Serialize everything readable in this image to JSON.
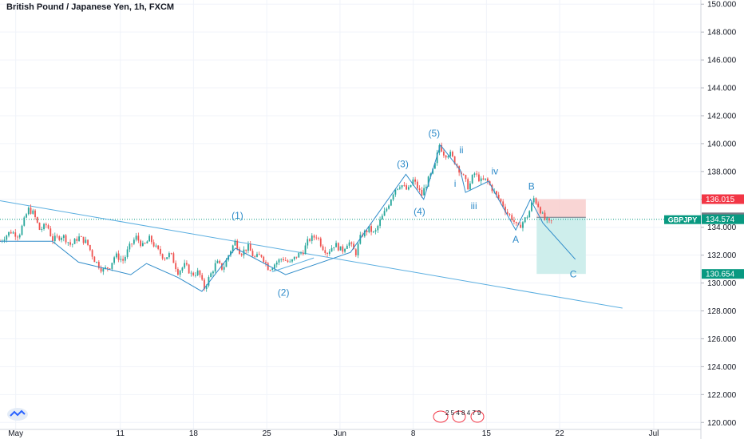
{
  "header": {
    "title": "British Pound / Japanese Yen, 1h, FXCM"
  },
  "colors": {
    "wave": "#2e8bc9",
    "trendline": "#5aaee0",
    "candle_up": "#26a69a",
    "candle_down": "#ef5350",
    "stop_zone": "#f7cac9",
    "target_zone": "#c9ecea",
    "price_tag_red": "#f23645",
    "price_tag_green": "#089981",
    "price_tag_gray": "#787b86",
    "grid": "#f0f3fa",
    "axis_text": "#131722"
  },
  "icons": {
    "logo": "tradingview-logo-icon"
  },
  "chart_data": {
    "type": "candlestick",
    "symbol": "GBPJPY",
    "interval": "1h",
    "y_axis": {
      "ticks": [
        "150.000",
        "148.000",
        "146.000",
        "144.000",
        "142.000",
        "140.000",
        "138.000",
        "136.000",
        "134.000",
        "132.000",
        "130.000",
        "128.000",
        "126.000",
        "124.000",
        "122.000",
        "120.000"
      ],
      "range": [
        119.5,
        150.3
      ]
    },
    "x_axis": {
      "ticks": [
        "May",
        "11",
        "18",
        "25",
        "Jun",
        "8",
        "15",
        "22",
        "Jul"
      ],
      "tick_day_index": [
        0,
        10,
        17,
        24,
        31,
        38,
        45,
        52,
        61
      ],
      "range_days": [
        -1.5,
        65.5
      ]
    },
    "price_labels": [
      {
        "label": "",
        "value": "136.015",
        "price": 136.015,
        "color": "#f23645"
      },
      {
        "label": "",
        "value": "134.711",
        "price": 134.711,
        "color": "#787b86"
      },
      {
        "label": "GBPJPY",
        "value": "134.574",
        "price": 134.574,
        "color": "#089981"
      },
      {
        "label": "",
        "value": "130.654",
        "price": 130.654,
        "color": "#089981"
      }
    ],
    "close_series": [
      [
        -1.5,
        133.0
      ],
      [
        -0.5,
        133.7
      ],
      [
        0.3,
        133.4
      ],
      [
        1.2,
        135.3
      ],
      [
        1.7,
        135.0
      ],
      [
        2.3,
        133.8
      ],
      [
        3.0,
        134.2
      ],
      [
        3.5,
        133.1
      ],
      [
        4.5,
        133.4
      ],
      [
        5.3,
        132.7
      ],
      [
        6.0,
        133.3
      ],
      [
        6.8,
        132.9
      ],
      [
        7.5,
        131.7
      ],
      [
        8.3,
        130.9
      ],
      [
        9.0,
        131.2
      ],
      [
        9.5,
        132.0
      ],
      [
        10.3,
        131.6
      ],
      [
        10.8,
        132.5
      ],
      [
        11.5,
        133.3
      ],
      [
        12.2,
        132.6
      ],
      [
        12.8,
        133.2
      ],
      [
        13.5,
        132.4
      ],
      [
        14.2,
        131.8
      ],
      [
        14.8,
        132.1
      ],
      [
        15.5,
        130.8
      ],
      [
        16.2,
        131.3
      ],
      [
        16.8,
        130.6
      ],
      [
        17.5,
        130.8
      ],
      [
        18.0,
        129.6
      ],
      [
        18.5,
        130.4
      ],
      [
        19.2,
        131.5
      ],
      [
        19.8,
        131.0
      ],
      [
        20.5,
        132.3
      ],
      [
        21.0,
        133.0
      ],
      [
        21.5,
        132.1
      ],
      [
        22.2,
        132.6
      ],
      [
        22.8,
        131.8
      ],
      [
        23.5,
        132.0
      ],
      [
        24.2,
        131.0
      ],
      [
        24.8,
        131.4
      ],
      [
        25.5,
        131.8
      ],
      [
        26.2,
        131.4
      ],
      [
        26.8,
        131.9
      ],
      [
        27.5,
        132.3
      ],
      [
        28.0,
        133.1
      ],
      [
        28.8,
        133.4
      ],
      [
        29.3,
        132.6
      ],
      [
        29.8,
        132.2
      ],
      [
        30.5,
        132.8
      ],
      [
        31.2,
        132.3
      ],
      [
        31.8,
        133.0
      ],
      [
        32.5,
        132.1
      ],
      [
        33.0,
        133.4
      ],
      [
        33.8,
        133.9
      ],
      [
        34.3,
        133.5
      ],
      [
        34.8,
        134.4
      ],
      [
        35.5,
        135.4
      ],
      [
        36.2,
        136.7
      ],
      [
        36.8,
        137.1
      ],
      [
        37.5,
        136.6
      ],
      [
        38.0,
        137.4
      ],
      [
        38.8,
        136.3
      ],
      [
        39.3,
        137.2
      ],
      [
        40.0,
        138.2
      ],
      [
        40.5,
        139.9
      ],
      [
        41.0,
        139.2
      ],
      [
        41.5,
        139.3
      ],
      [
        42.2,
        138.4
      ],
      [
        42.8,
        137.6
      ],
      [
        43.3,
        136.8
      ],
      [
        43.8,
        137.9
      ],
      [
        44.5,
        137.3
      ],
      [
        45.0,
        137.4
      ],
      [
        45.5,
        136.8
      ],
      [
        46.0,
        136.2
      ],
      [
        46.5,
        135.7
      ],
      [
        47.0,
        135.0
      ],
      [
        47.5,
        134.6
      ],
      [
        48.0,
        133.9
      ],
      [
        48.5,
        134.4
      ],
      [
        49.0,
        134.9
      ],
      [
        49.5,
        136.1
      ],
      [
        50.0,
        135.5
      ],
      [
        50.5,
        134.6
      ],
      [
        51.0,
        134.3
      ],
      [
        51.4,
        134.5
      ]
    ],
    "wave_labels": [
      "(1)",
      "(2)",
      "(3)",
      "(4)",
      "(5)",
      "i",
      "ii",
      "iii",
      "iv",
      "A",
      "B",
      "C"
    ],
    "wave_points": {
      "impulse": [
        [
          -1.5,
          133.0
        ],
        [
          3.5,
          133.0
        ],
        [
          6.0,
          131.5
        ],
        [
          11.0,
          130.6
        ],
        [
          12.5,
          131.4
        ],
        [
          15.5,
          130.4
        ],
        [
          17.8,
          129.4
        ],
        [
          21.0,
          132.5
        ],
        [
          25.8,
          130.6
        ],
        [
          32.0,
          132.2
        ],
        [
          37.3,
          137.8
        ],
        [
          39.0,
          136.0
        ],
        [
          40.6,
          139.9
        ]
      ],
      "correction": [
        [
          40.6,
          139.9
        ],
        [
          42.5,
          138.1
        ],
        [
          43.0,
          136.5
        ],
        [
          45.2,
          137.3
        ],
        [
          47.8,
          133.8
        ],
        [
          49.2,
          136.0
        ],
        [
          50.4,
          134.3
        ],
        [
          53.5,
          131.7
        ]
      ]
    },
    "trendlines": [
      {
        "from": [
          -1.5,
          135.9
        ],
        "to": [
          58.0,
          128.2
        ]
      }
    ],
    "zones": {
      "stop": {
        "x_from": 49.8,
        "x_to": 54.5,
        "y_from": 134.711,
        "y_to": 136.015
      },
      "target": {
        "x_from": 49.8,
        "x_to": 54.5,
        "y_from": 130.654,
        "y_to": 134.711
      }
    },
    "events_note": "2   5   4 8 4 7 9"
  }
}
